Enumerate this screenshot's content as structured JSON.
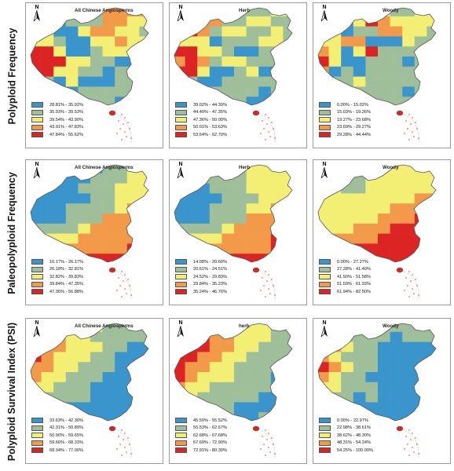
{
  "rows": [
    {
      "label": "Polyploid  Frequency",
      "panels": [
        {
          "title": "All Chinese Angiosperms",
          "legend": [
            "28.81% - 35.92%",
            "35.93% - 39.53%",
            "39.54% - 43.90%",
            "43.91% - 47.83%",
            "47.84% - 55.62%"
          ],
          "pattern": [
            "1122224444",
            "1112224433",
            "3311344332",
            "3321133433",
            "5531123331",
            "5553322111",
            "5533221221",
            "2213111222",
            "3321222221",
            "2222222111"
          ]
        },
        {
          "title": "Herb",
          "legend": [
            "39.02% - 44.39%",
            "44.40% - 47.35%",
            "47.36% - 50.00%",
            "50.01% - 53.63%",
            "53.64% - 62.70%"
          ],
          "pattern": [
            "4433222233",
            "4544223322",
            "5542332232",
            "3331222332",
            "5533211221",
            "4542332221",
            "5531123112",
            "3211222222",
            "2232222121",
            "2222221122"
          ]
        },
        {
          "title": "Woody",
          "legend": [
            "0.00% - 15.02%",
            "15.03% - 19.26%",
            "19.27% - 23.68%",
            "23.69% - 29.27%",
            "29.28% - 44.44%"
          ],
          "pattern": [
            "5533432233",
            "3213543333",
            "4312244332",
            "3344111322",
            "4313522222",
            "5311222121",
            "4121222222",
            "2223222222",
            "2222222122",
            "3332222222"
          ]
        }
      ]
    },
    {
      "label": "Paleopolyploid  Frequency",
      "panels": [
        {
          "title": "All Chinese Angiosperms",
          "legend": [
            "16.17% - 26.17%",
            "26.18% - 32.81%",
            "32.82% - 39.83%",
            "39.84% - 47.35%",
            "47.36% - 56.88%"
          ],
          "pattern": [
            "1111112233",
            "1111122233",
            "1111222333",
            "1111122333",
            "1112222344",
            "1112224444",
            "2222344444",
            "2333444444",
            "3344444455",
            "4445555555"
          ]
        },
        {
          "title": "Herb",
          "legend": [
            "14.08% - 20.60%",
            "20.61% - 24.51%",
            "24.52% - 29.83%",
            "29.84% - 35.23%",
            "35.24% - 46.76%"
          ],
          "pattern": [
            "1122223333",
            "1122223333",
            "1112223333",
            "1111222333",
            "1112223344",
            "1112224444",
            "2222344444",
            "2333444455",
            "3344444455",
            "4444555555"
          ]
        },
        {
          "title": "Woody",
          "legend": [
            "0.00% - 27.27%",
            "27.28% - 41.49%",
            "41.50% - 51.58%",
            "51.59% - 61.93%",
            "61.94% - 82.50%"
          ],
          "pattern": [
            "3333333333",
            "3322333333",
            "3322333333",
            "3333333344",
            "3333334445",
            "3333344455",
            "3334445555",
            "3444455555",
            "3445555555",
            "4455555555"
          ]
        }
      ]
    },
    {
      "label": "Polyploid Survival Index (PSI)",
      "panels": [
        {
          "title": "All Chinese Angiosperms",
          "legend": [
            "33.63% - 42.30%",
            "42.31% - 50.89%",
            "50.90% - 59.65%",
            "59.66% - 68.33%",
            "68.34% - 77.00%"
          ],
          "pattern": [
            "5543332222",
            "5543322222",
            "4443332211",
            "5433322111",
            "4433222111",
            "4332221111",
            "3322211111",
            "3222211111",
            "2221111111",
            "2221111112"
          ]
        },
        {
          "title": "herb",
          "legend": [
            "45.50% - 55.52%",
            "55.53% - 62.67%",
            "62.68% - 67.68%",
            "67.69% - 72.90%",
            "72.91% - 80.39%"
          ],
          "pattern": [
            "5554333322",
            "5554433322",
            "5554433222",
            "5544332222",
            "5443322221",
            "5433322211",
            "4332222211",
            "3322222111",
            "3222211112",
            "3322211222"
          ]
        },
        {
          "title": "Woody",
          "legend": [
            "0.00% - 22.97%",
            "22.98% - 38.61%",
            "38.62% - 48.30%",
            "48.31% - 54.24%",
            "54.25% - 100.00%"
          ],
          "pattern": [
            "3333222222",
            "3322221222",
            "5432211111",
            "4322211111",
            "5432211111",
            "4322111111",
            "3322211111",
            "3221211112",
            "2211111112",
            "2221111122"
          ]
        }
      ]
    }
  ],
  "colors": {
    "class_1": "#3a95cc",
    "class_2": "#9ebf9a",
    "class_3": "#f3ef74",
    "class_4": "#f29a4a",
    "class_5": "#dd2424",
    "map_outline": "#555555",
    "island_dots": "#d04040"
  },
  "north_arrow_letter": "N"
}
